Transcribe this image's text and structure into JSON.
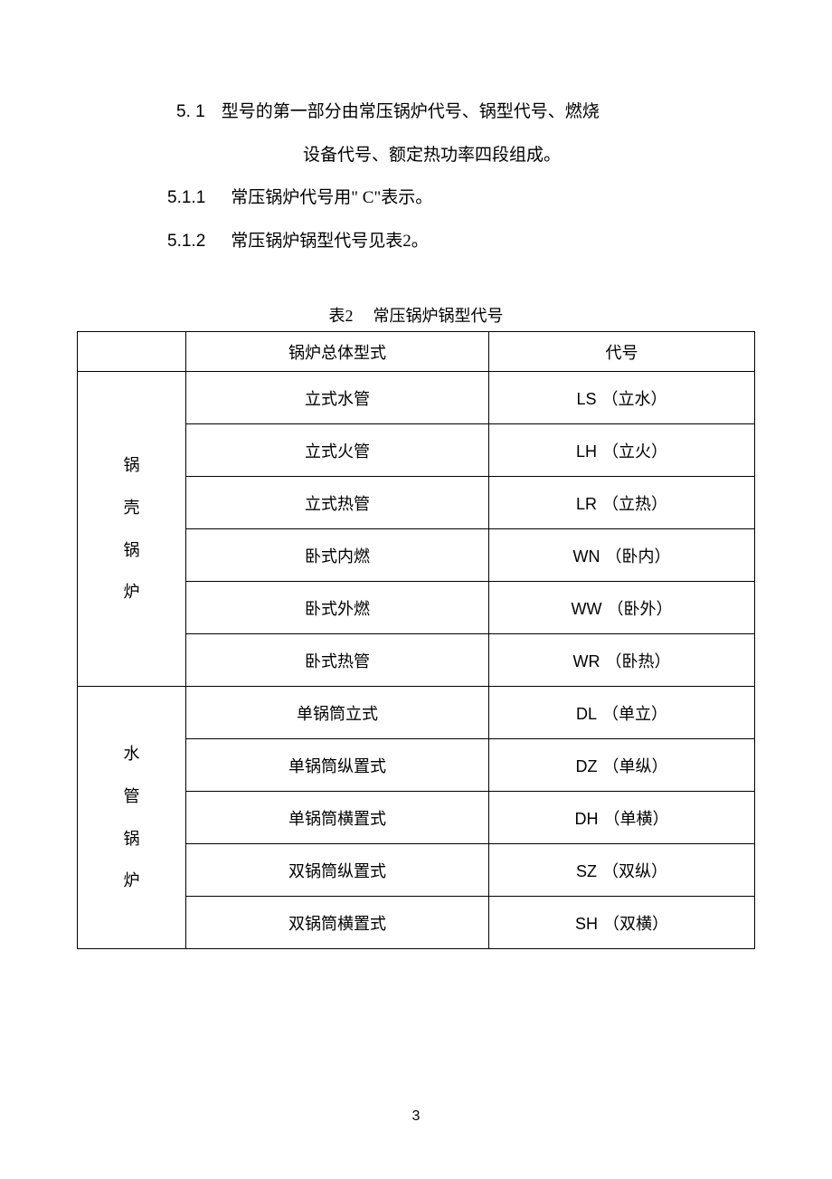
{
  "section_5_1": {
    "number": "5.  1",
    "text_line1": "型号的第一部分由常压锅炉代号、锅型代号、燃烧",
    "text_line2": "设备代号、额定热功率四段组成。"
  },
  "section_5_1_1": {
    "number": "5.1.1",
    "text": "常压锅炉代号用\"  C\"表示。"
  },
  "section_5_1_2": {
    "number": "5.1.2",
    "text": "常压锅炉锅型代号见表2。"
  },
  "table": {
    "caption_num": "表2",
    "caption_text": "常压锅炉锅型代号",
    "headers": {
      "col1": "",
      "col2": "锅炉总体型式",
      "col3": "代号"
    },
    "group1": {
      "label_chars": [
        "锅",
        "壳",
        "锅",
        "炉"
      ],
      "rows": [
        {
          "type": "立式水管",
          "code_en": "LS",
          "code_cn": "（立水）"
        },
        {
          "type": "立式火管",
          "code_en": "LH",
          "code_cn": "（立火）"
        },
        {
          "type": "立式热管",
          "code_en": "LR",
          "code_cn": "（立热）"
        },
        {
          "type": "卧式内燃",
          "code_en": "WN",
          "code_cn": "（卧内）"
        },
        {
          "type": "卧式外燃",
          "code_en": "WW",
          "code_cn": "（卧外）"
        },
        {
          "type": "卧式热管",
          "code_en": "WR",
          "code_cn": "（卧热）"
        }
      ]
    },
    "group2": {
      "label_chars": [
        "水",
        "管",
        "锅",
        "炉"
      ],
      "rows": [
        {
          "type": "单锅筒立式",
          "code_en": "DL",
          "code_cn": "（单立）"
        },
        {
          "type": "单锅筒纵置式",
          "code_en": "DZ",
          "code_cn": "（单纵）"
        },
        {
          "type": "单锅筒横置式",
          "code_en": "DH",
          "code_cn": "（单横）"
        },
        {
          "type": "双锅筒纵置式",
          "code_en": "SZ",
          "code_cn": "（双纵）"
        },
        {
          "type": "双锅筒横置式",
          "code_en": "SH",
          "code_cn": "（双横）"
        }
      ]
    }
  },
  "page_number": "3",
  "colors": {
    "text": "#000000",
    "background": "#ffffff",
    "border": "#000000"
  },
  "fonts": {
    "body_size": 19,
    "table_size": 18,
    "pagenum_size": 16
  }
}
